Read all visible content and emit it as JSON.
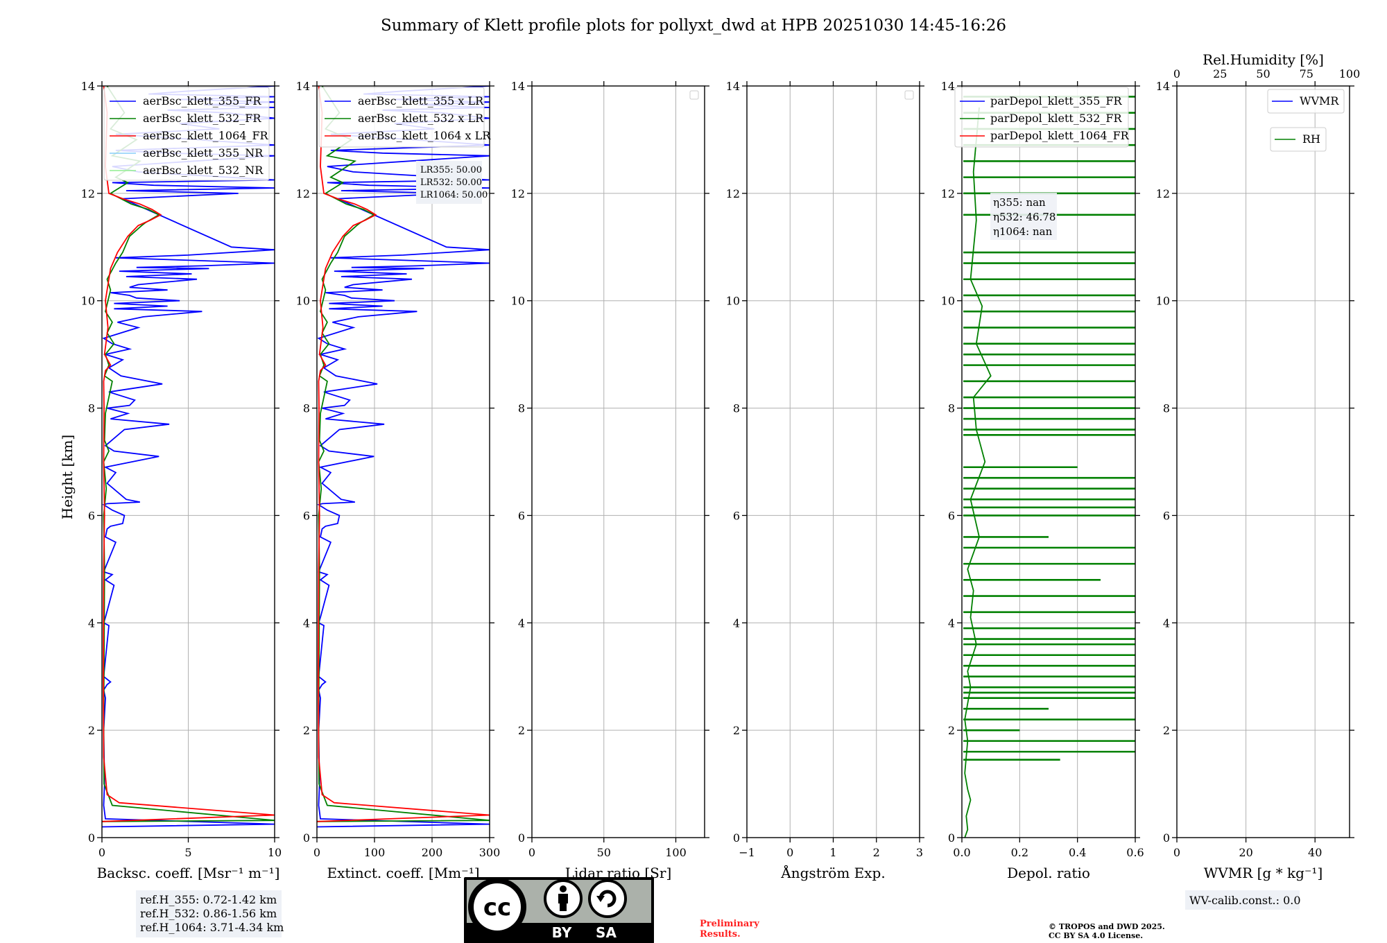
{
  "title": "Summary of Klett profile plots for pollyxt_dwd at HPB 20251030 14:45-16:26",
  "y_axis_label": "Height [km]",
  "colors": {
    "blue": "#0000ff",
    "green": "#008000",
    "red": "#ff0000",
    "lightblue": "#87cefa",
    "lightgreen": "#90ee90"
  },
  "refh_box": {
    "line1": "ref.H_355: 0.72-1.42 km",
    "line2": "ref.H_532: 0.86-1.56 km",
    "line3": "ref.H_1064: 3.71-4.34 km"
  },
  "lr_box": {
    "line1": "LR355: 50.00",
    "line2": "LR532: 50.00",
    "line3": "LR1064: 50.00"
  },
  "eta_box": {
    "line1": "η355: nan",
    "line2": "η532: 46.78",
    "line3": "η1064: nan"
  },
  "wv_calib": "WV-calib.const.: 0.0",
  "preliminary": {
    "line1": "Preliminary",
    "line2": "Results."
  },
  "copyright": {
    "line1": "© TROPOS and DWD 2025.",
    "line2": "CC BY SA 4.0 License."
  },
  "cc_logo": {
    "cc": "cc",
    "by": "BY",
    "sa": "SA"
  },
  "chart_data": [
    {
      "type": "line",
      "name": "backscatter",
      "xlabel": "Backsc. coeff. [Msr⁻¹ m⁻¹]",
      "ylabel": "Height [km]",
      "xlim": [
        0,
        10
      ],
      "ylim": [
        0,
        14
      ],
      "xticks": [
        "0",
        "5",
        "10"
      ],
      "yticks": [
        "0",
        "2",
        "4",
        "6",
        "8",
        "10",
        "12",
        "14"
      ],
      "legend": [
        "aerBsc_klett_355_FR",
        "aerBsc_klett_532_FR",
        "aerBsc_klett_1064_FR",
        "aerBsc_klett_355_NR",
        "aerBsc_klett_532_NR"
      ],
      "series": [
        {
          "name": "aerBsc_klett_355_FR",
          "color": "blue",
          "x": [
            0,
            10,
            0.2,
            0.1,
            0.15,
            0.1,
            0.2,
            0.1,
            0.3,
            0.5,
            0.1,
            0.4,
            0.1,
            0.2,
            0.7,
            0.2,
            0.6,
            0.1,
            0.8,
            0.2,
            0.3,
            0.5,
            1.2,
            1.3,
            0.6,
            0.1,
            0.3,
            2.2,
            1.4,
            0.3,
            0.8,
            0.2,
            3.3,
            0.7,
            0.2,
            1.3,
            3.9,
            0.5,
            1.5,
            0.3,
            1.6,
            1.9,
            0.4,
            3.5,
            1.1,
            0.4,
            1.2,
            0.2,
            1.6,
            0.6,
            0.1,
            2.1,
            0.9,
            2.4,
            5.8,
            0.7,
            3.8,
            0.7,
            4.5,
            2.0,
            1.6,
            0.5,
            3.8,
            1.6,
            2.1,
            5.5,
            1.4,
            5.2,
            1.0,
            6.2,
            2.0,
            5.8,
            10,
            0.8,
            5.0,
            10,
            7.5,
            1.2,
            7.9,
            1.4,
            10,
            3.0,
            0.6,
            10,
            2.1,
            0.6,
            10,
            3.8,
            0.8,
            10,
            5.5,
            0.8,
            6.8,
            4.5,
            10,
            7.2,
            3.8,
            10,
            5.9,
            10,
            4.5,
            10,
            2.7,
            4.8,
            10
          ],
          "y": [
            0.2,
            0.25,
            0.35,
            0.6,
            1.0,
            2.0,
            2.6,
            2.75,
            2.85,
            2.9,
            3.0,
            3.95,
            4.0,
            4.1,
            4.7,
            4.8,
            4.9,
            4.95,
            5.5,
            5.6,
            5.75,
            5.8,
            5.85,
            6.0,
            6.1,
            6.2,
            6.22,
            6.25,
            6.3,
            6.6,
            6.8,
            6.9,
            7.1,
            7.2,
            7.3,
            7.6,
            7.7,
            7.8,
            7.9,
            8.0,
            8.05,
            8.15,
            8.3,
            8.45,
            8.6,
            8.75,
            8.9,
            9.0,
            9.1,
            9.2,
            9.3,
            9.5,
            9.6,
            9.7,
            9.8,
            9.85,
            9.9,
            9.95,
            10.0,
            10.05,
            10.1,
            10.15,
            10.2,
            10.25,
            10.3,
            10.4,
            10.45,
            10.5,
            10.55,
            10.6,
            10.62,
            10.65,
            10.7,
            10.8,
            10.85,
            10.95,
            11.0,
            11.9,
            12.0,
            12.05,
            12.1,
            12.15,
            12.2,
            12.25,
            12.4,
            12.5,
            12.7,
            12.75,
            12.8,
            12.9,
            13.0,
            13.1,
            13.2,
            13.3,
            13.4,
            13.5,
            13.55,
            13.6,
            13.65,
            13.7,
            13.75,
            13.8,
            13.85,
            13.9,
            14.0
          ]
        },
        {
          "name": "aerBsc_klett_532_FR",
          "color": "green",
          "x": [
            0,
            10,
            0.6,
            0.12,
            0.1,
            0.15,
            0.1,
            0.25,
            0.1,
            0.4,
            0.15,
            0.2,
            0.6,
            0.15,
            0.4,
            0.2,
            0.7,
            0.3,
            0.6,
            0.2,
            0.5,
            0.3,
            0.8,
            1.2,
            1.6,
            2.3,
            2.5,
            3.3,
            2.7,
            1.7,
            1.1,
            0.5,
            1.5,
            0.8,
            2.2,
            0.6,
            2.0,
            0.5,
            1.3,
            0.3
          ],
          "y": [
            0.3,
            0.32,
            0.6,
            1.0,
            2.0,
            5.0,
            6.0,
            6.5,
            7.0,
            7.2,
            7.4,
            7.9,
            8.5,
            8.6,
            8.8,
            9.0,
            9.2,
            9.4,
            9.6,
            9.8,
            10.2,
            10.4,
            10.7,
            10.9,
            11.2,
            11.4,
            11.45,
            11.6,
            11.7,
            11.8,
            11.9,
            12.0,
            12.2,
            12.3,
            12.6,
            12.7,
            13.0,
            13.2,
            13.5,
            14.0
          ]
        },
        {
          "name": "aerBsc_klett_1064_FR",
          "color": "red",
          "x": [
            0,
            10,
            1.0,
            0.3,
            0.1,
            0.08,
            0.1,
            0.15,
            0.1,
            0.12,
            0.1,
            0.2,
            0.5,
            0.15,
            0.35,
            0.2,
            0.5,
            0.9,
            1.5,
            2.1,
            2.8,
            3.4,
            2.9,
            2.2,
            1.2,
            0.4,
            0.2,
            0.3,
            0.1
          ],
          "y": [
            0.3,
            0.42,
            0.65,
            0.8,
            1.5,
            3.0,
            5.0,
            6.0,
            7.0,
            8.0,
            8.5,
            8.7,
            8.8,
            9.0,
            9.5,
            10.0,
            10.6,
            10.9,
            11.2,
            11.4,
            11.5,
            11.6,
            11.7,
            11.8,
            11.9,
            12.0,
            12.5,
            13.5,
            14.0
          ]
        }
      ]
    },
    {
      "type": "line",
      "name": "extinction",
      "xlabel": "Extinct. coeff. [Mm⁻¹]",
      "xlim": [
        0,
        300
      ],
      "ylim": [
        0,
        14
      ],
      "xticks": [
        "0",
        "100",
        "200",
        "300"
      ],
      "yticks": [
        "0",
        "2",
        "4",
        "6",
        "8",
        "10",
        "12",
        "14"
      ],
      "legend": [
        "aerBsc_klett_355 x LR",
        "aerBsc_klett_532 x LR",
        "aerBsc_klett_1064 x LR"
      ]
    },
    {
      "type": "line",
      "name": "lidar_ratio",
      "xlabel": "Lidar ratio [Sr]",
      "xlim": [
        0,
        120
      ],
      "ylim": [
        0,
        14
      ],
      "xticks": [
        "0",
        "50",
        "100"
      ],
      "yticks": [
        "0",
        "2",
        "4",
        "6",
        "8",
        "10",
        "12",
        "14"
      ],
      "series": []
    },
    {
      "type": "line",
      "name": "angstrom",
      "xlabel": "Ångström Exp.",
      "xlim": [
        -1,
        3
      ],
      "ylim": [
        0,
        14
      ],
      "xticks": [
        "−1",
        "0",
        "1",
        "2",
        "3"
      ],
      "yticks": [
        "0",
        "2",
        "4",
        "6",
        "8",
        "10",
        "12",
        "14"
      ],
      "series": []
    },
    {
      "type": "line",
      "name": "depol",
      "xlabel": "Depol. ratio",
      "xlim": [
        0,
        0.6
      ],
      "ylim": [
        0,
        14
      ],
      "xticks": [
        "0.0",
        "0.2",
        "0.4",
        "0.6"
      ],
      "yticks": [
        "0",
        "2",
        "4",
        "6",
        "8",
        "10",
        "12",
        "14"
      ],
      "legend": [
        "parDepol_klett_355_FR",
        "parDepol_klett_532_FR",
        "parDepol_klett_1064_FR"
      ],
      "series": [
        {
          "name": "parDepol_klett_532_FR",
          "color": "green",
          "x": [
            0.01,
            0.02,
            0.015,
            0.03,
            0.02,
            0.01,
            0.02,
            0.01,
            0.03,
            0.02,
            0.05,
            0.03,
            0.04,
            0.02,
            0.06,
            0.03,
            0.08,
            0.05,
            0.04,
            0.1,
            0.05,
            0.07,
            0.03,
            0.05,
            0.04,
            0.06
          ],
          "y": [
            0.0,
            0.15,
            0.4,
            0.7,
            0.9,
            1.2,
            1.8,
            2.2,
            2.8,
            3.1,
            3.6,
            4.1,
            4.6,
            5.0,
            5.6,
            6.3,
            7.0,
            7.6,
            8.2,
            8.6,
            9.2,
            9.9,
            10.4,
            11.5,
            12.4,
            13.6
          ]
        }
      ],
      "spikes_532": [
        {
          "h": 1.45,
          "v": 0.34
        },
        {
          "h": 1.6,
          "v": 0.6
        },
        {
          "h": 1.8,
          "v": 0.6
        },
        {
          "h": 2.0,
          "v": 0.2
        },
        {
          "h": 2.2,
          "v": 0.6
        },
        {
          "h": 2.4,
          "v": 0.3
        },
        {
          "h": 2.6,
          "v": 0.6
        },
        {
          "h": 2.7,
          "v": 0.6
        },
        {
          "h": 2.8,
          "v": 0.6
        },
        {
          "h": 3.0,
          "v": 0.6
        },
        {
          "h": 3.2,
          "v": 0.6
        },
        {
          "h": 3.4,
          "v": 0.6
        },
        {
          "h": 3.6,
          "v": 0.6
        },
        {
          "h": 3.7,
          "v": 0.6
        },
        {
          "h": 3.9,
          "v": 0.6
        },
        {
          "h": 4.2,
          "v": 0.6
        },
        {
          "h": 4.5,
          "v": 0.6
        },
        {
          "h": 4.8,
          "v": 0.48
        },
        {
          "h": 5.1,
          "v": 0.6
        },
        {
          "h": 5.4,
          "v": 0.6
        },
        {
          "h": 5.6,
          "v": 0.3
        },
        {
          "h": 6.0,
          "v": 0.6
        },
        {
          "h": 6.15,
          "v": 0.6
        },
        {
          "h": 6.3,
          "v": 0.6
        },
        {
          "h": 6.5,
          "v": 0.6
        },
        {
          "h": 6.7,
          "v": 0.6
        },
        {
          "h": 6.9,
          "v": 0.4
        },
        {
          "h": 7.5,
          "v": 0.6
        },
        {
          "h": 7.6,
          "v": 0.6
        },
        {
          "h": 7.8,
          "v": 0.6
        },
        {
          "h": 8.0,
          "v": 0.6
        },
        {
          "h": 8.2,
          "v": 0.6
        },
        {
          "h": 8.5,
          "v": 0.6
        },
        {
          "h": 8.8,
          "v": 0.6
        },
        {
          "h": 9.0,
          "v": 0.6
        },
        {
          "h": 9.2,
          "v": 0.6
        },
        {
          "h": 9.5,
          "v": 0.6
        },
        {
          "h": 9.8,
          "v": 0.6
        },
        {
          "h": 10.1,
          "v": 0.6
        },
        {
          "h": 10.4,
          "v": 0.6
        },
        {
          "h": 10.7,
          "v": 0.6
        },
        {
          "h": 10.9,
          "v": 0.6
        },
        {
          "h": 11.6,
          "v": 0.6
        },
        {
          "h": 12.0,
          "v": 0.6
        },
        {
          "h": 12.3,
          "v": 0.6
        },
        {
          "h": 12.6,
          "v": 0.6
        },
        {
          "h": 12.9,
          "v": 0.6
        },
        {
          "h": 13.2,
          "v": 0.6
        },
        {
          "h": 13.5,
          "v": 0.6
        },
        {
          "h": 13.8,
          "v": 0.6
        }
      ]
    },
    {
      "type": "line",
      "name": "wvmr_rh",
      "xlabel": "WVMR [g * kg⁻¹]",
      "xlim": [
        0,
        50
      ],
      "ylim": [
        0,
        14
      ],
      "xticks": [
        "0",
        "20",
        "40"
      ],
      "yticks": [
        "0",
        "2",
        "4",
        "6",
        "8",
        "10",
        "12",
        "14"
      ],
      "top_xlabel": "Rel.Humidity [%]",
      "top_xlim": [
        0,
        100
      ],
      "top_xticks": [
        "0",
        "25",
        "50",
        "75",
        "100"
      ],
      "legend": [
        "WVMR",
        "RH"
      ],
      "series": []
    }
  ]
}
